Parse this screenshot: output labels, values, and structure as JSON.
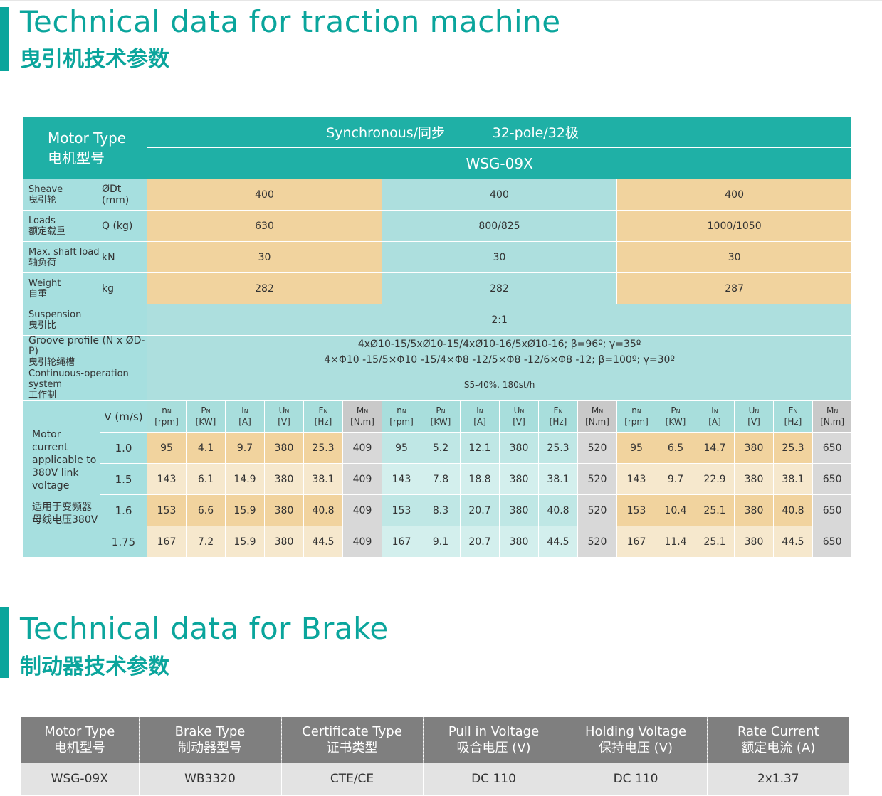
{
  "section1": {
    "title_en": "Technical data for traction machine",
    "title_cn": "曳引机技术参数"
  },
  "traction": {
    "motor_type_en": "Motor Type",
    "motor_type_cn": "电机型号",
    "synchronous": "Synchronous/同步",
    "poles": "32-pole/32极",
    "model": "WSG-09X",
    "rows": [
      {
        "en": "Sheave",
        "cn": "曳引轮",
        "unit": "ØDt (mm)",
        "values": [
          "400",
          "400",
          "400"
        ]
      },
      {
        "en": "Loads",
        "cn": "额定载重",
        "unit": "Q (kg)",
        "values": [
          "630",
          "800/825",
          "1000/1050"
        ]
      },
      {
        "en": "Max. shaft load",
        "cn": "轴负荷",
        "unit": "kN",
        "values": [
          "30",
          "30",
          "30"
        ]
      },
      {
        "en": "Weight",
        "cn": "自重",
        "unit": "kg",
        "values": [
          "282",
          "282",
          "287"
        ]
      }
    ],
    "suspension": {
      "en": "Suspension",
      "cn": "曳引比",
      "value": "2:1"
    },
    "groove": {
      "en": "Groove profile (N x ØD-P)",
      "cn": "曳引轮绳槽",
      "line1": "4xØ10-15/5xØ10-15/4xØ10-16/5xØ10-16; β=96º; γ=35º",
      "line2": "4×Φ10 -15/5×Φ10 -15/4×Φ8 -12/5×Φ8 -12/6×Φ8 -12; β=100º; γ=30º"
    },
    "continuous": {
      "en": "Continuous-operation system",
      "cn": "工作制",
      "value": "S5-40%, 180st/h"
    },
    "motor_current": {
      "en": "Motor current applicable to 380V link voltage",
      "cn": "适用于变频器母线电压380V"
    },
    "speed_header": "V (m/s)",
    "param_headers": [
      {
        "sym": "n",
        "sub": "N",
        "unit": "[rpm]"
      },
      {
        "sym": "P",
        "sub": "N",
        "unit": "[KW]"
      },
      {
        "sym": "I",
        "sub": "N",
        "unit": "[A]"
      },
      {
        "sym": "U",
        "sub": "N",
        "unit": "[V]"
      },
      {
        "sym": "F",
        "sub": "N",
        "unit": "[Hz]"
      },
      {
        "sym": "M",
        "sub": "N",
        "unit": "[N.m]"
      }
    ],
    "speeds": [
      {
        "v": "1.0",
        "vals": [
          "95",
          "4.1",
          "9.7",
          "380",
          "25.3",
          "409",
          "95",
          "5.2",
          "12.1",
          "380",
          "25.3",
          "520",
          "95",
          "6.5",
          "14.7",
          "380",
          "25.3",
          "650"
        ]
      },
      {
        "v": "1.5",
        "vals": [
          "143",
          "6.1",
          "14.9",
          "380",
          "38.1",
          "409",
          "143",
          "7.8",
          "18.8",
          "380",
          "38.1",
          "520",
          "143",
          "9.7",
          "22.9",
          "380",
          "38.1",
          "650"
        ]
      },
      {
        "v": "1.6",
        "vals": [
          "153",
          "6.6",
          "15.9",
          "380",
          "40.8",
          "409",
          "153",
          "8.3",
          "20.7",
          "380",
          "40.8",
          "520",
          "153",
          "10.4",
          "25.1",
          "380",
          "40.8",
          "650"
        ]
      },
      {
        "v": "1.75",
        "vals": [
          "167",
          "7.2",
          "15.9",
          "380",
          "44.5",
          "409",
          "167",
          "9.1",
          "20.7",
          "380",
          "44.5",
          "520",
          "167",
          "11.4",
          "25.1",
          "380",
          "44.5",
          "650"
        ]
      }
    ]
  },
  "section2": {
    "title_en": "Technical data for Brake",
    "title_cn": "制动器技术参数"
  },
  "brake": {
    "headers": [
      {
        "en": "Motor Type",
        "cn": "电机型号"
      },
      {
        "en": "Brake Type",
        "cn": "制动器型号"
      },
      {
        "en": "Certificate Type",
        "cn": "证书类型"
      },
      {
        "en": "Pull in Voltage",
        "cn": "吸合电压 (V)"
      },
      {
        "en": "Holding Voltage",
        "cn": "保持电压 (V)"
      },
      {
        "en": "Rate Current",
        "cn": "额定电流 (A)"
      }
    ],
    "row": [
      "WSG-09X",
      "WB3320",
      "CTE/CE",
      "DC 110",
      "DC 110",
      "2x1.37"
    ]
  }
}
